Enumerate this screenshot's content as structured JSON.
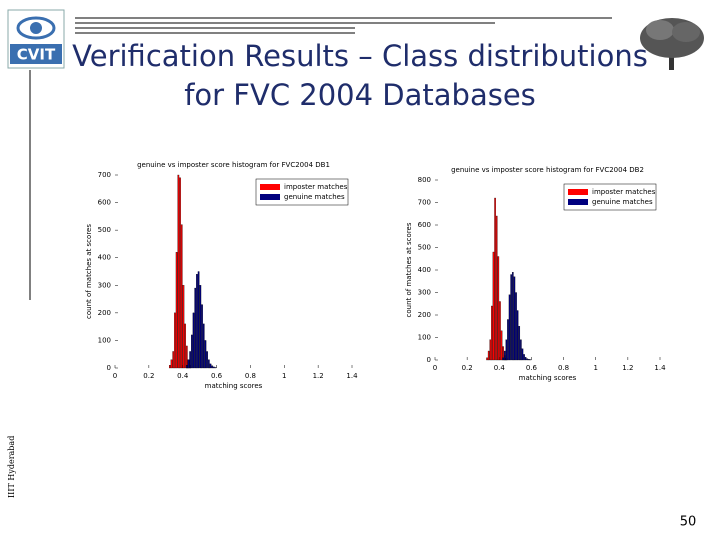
{
  "slide": {
    "logo_text": "CVIT",
    "title_line1": "Verification Results – Class distributions",
    "title_line2": "for FVC 2004 Databases",
    "side_text": "IIIT Hyderabad",
    "page_number": "50"
  },
  "chart_data": [
    {
      "type": "histogram",
      "title": "genuine vs imposter score histogram for FVC2004 DB1",
      "x_label": "matching scores",
      "y_label": "count of matches at scores",
      "xlim": [
        0,
        1.4
      ],
      "xticks": [
        0,
        0.2,
        0.4,
        0.6,
        0.8,
        1,
        1.2,
        1.4
      ],
      "ylim": [
        0,
        700
      ],
      "yticks": [
        0,
        100,
        200,
        300,
        400,
        500,
        600,
        700
      ],
      "legend": "upper right",
      "series": [
        {
          "name": "imposter matches",
          "color": "#ff0000",
          "bins": [
            0.32,
            0.33,
            0.34,
            0.35,
            0.36,
            0.37,
            0.38,
            0.39,
            0.4,
            0.41,
            0.42,
            0.43,
            0.44,
            0.45
          ],
          "values": [
            10,
            30,
            60,
            200,
            420,
            700,
            690,
            520,
            300,
            160,
            80,
            30,
            10
          ]
        },
        {
          "name": "genuine matches",
          "color": "#00007f",
          "bins": [
            0.42,
            0.43,
            0.44,
            0.45,
            0.46,
            0.47,
            0.48,
            0.49,
            0.5,
            0.51,
            0.52,
            0.53,
            0.54,
            0.55,
            0.56,
            0.57,
            0.58,
            0.59,
            0.6
          ],
          "values": [
            10,
            30,
            60,
            120,
            200,
            290,
            340,
            350,
            300,
            230,
            160,
            100,
            60,
            30,
            15,
            8,
            4,
            2
          ]
        }
      ]
    },
    {
      "type": "histogram",
      "title": "genuine vs imposter score histogram for FVC2004 DB2",
      "x_label": "matching scores",
      "y_label": "count of matches at scores",
      "xlim": [
        0,
        1.4
      ],
      "xticks": [
        0,
        0.2,
        0.4,
        0.6,
        0.8,
        1,
        1.2,
        1.4
      ],
      "ylim": [
        0,
        800
      ],
      "yticks": [
        0,
        100,
        200,
        300,
        400,
        500,
        600,
        700,
        800
      ],
      "legend": "upper right",
      "series": [
        {
          "name": "imposter matches",
          "color": "#ff0000",
          "bins": [
            0.32,
            0.33,
            0.34,
            0.35,
            0.36,
            0.37,
            0.38,
            0.39,
            0.4,
            0.41,
            0.42,
            0.43,
            0.44,
            0.45
          ],
          "values": [
            10,
            40,
            90,
            240,
            480,
            720,
            640,
            460,
            260,
            130,
            60,
            20,
            8
          ]
        },
        {
          "name": "genuine matches",
          "color": "#00007f",
          "bins": [
            0.42,
            0.43,
            0.44,
            0.45,
            0.46,
            0.47,
            0.48,
            0.49,
            0.5,
            0.51,
            0.52,
            0.53,
            0.54,
            0.55,
            0.56,
            0.57,
            0.58,
            0.59,
            0.6
          ],
          "values": [
            10,
            40,
            90,
            180,
            290,
            380,
            390,
            370,
            300,
            220,
            150,
            90,
            50,
            25,
            12,
            6,
            3,
            2
          ]
        }
      ]
    }
  ]
}
